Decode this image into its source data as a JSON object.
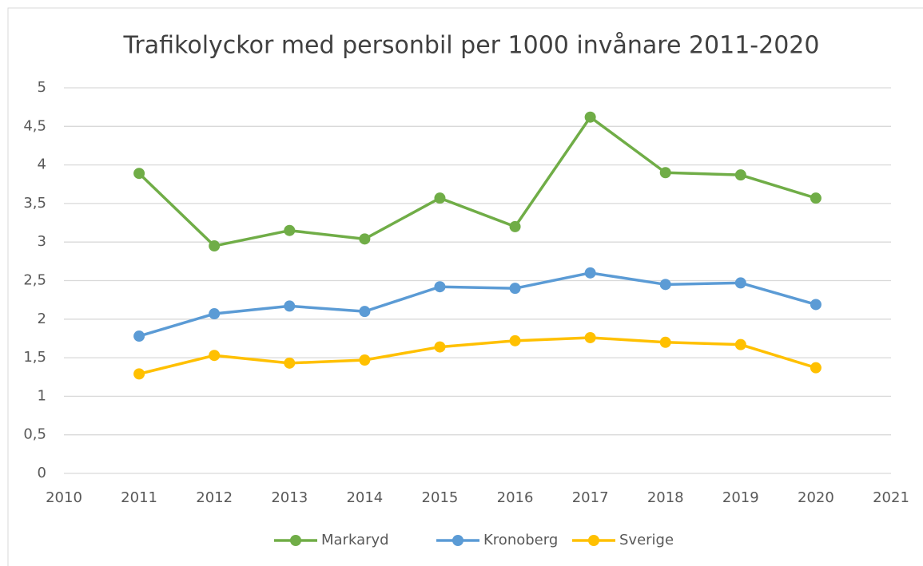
{
  "chart_data": {
    "type": "line",
    "title": "Trafikolyckor med personbil per 1000 invånare 2011-2020",
    "x": [
      2011,
      2012,
      2013,
      2014,
      2015,
      2016,
      2017,
      2018,
      2019,
      2020
    ],
    "series": [
      {
        "name": "Markaryd",
        "color": "#70ad47",
        "values": [
          3.89,
          2.95,
          3.15,
          3.04,
          3.57,
          3.2,
          4.62,
          3.9,
          3.87,
          3.57
        ]
      },
      {
        "name": "Kronoberg",
        "color": "#5b9bd5",
        "values": [
          1.78,
          2.07,
          2.17,
          2.1,
          2.42,
          2.4,
          2.6,
          2.45,
          2.47,
          2.19
        ]
      },
      {
        "name": "Sverige",
        "color": "#ffc000",
        "values": [
          1.29,
          1.53,
          1.43,
          1.47,
          1.64,
          1.72,
          1.76,
          1.7,
          1.67,
          1.37
        ]
      }
    ],
    "xlim": [
      2010,
      2021
    ],
    "xticks": [
      2010,
      2011,
      2012,
      2013,
      2014,
      2015,
      2016,
      2017,
      2018,
      2019,
      2020,
      2021
    ],
    "ylim": [
      0,
      5
    ],
    "yticks": [
      0,
      {
        "value": 0.5,
        "label": "0,5"
      },
      1,
      {
        "value": 1.5,
        "label": "1,5"
      },
      2,
      {
        "value": 2.5,
        "label": "2,5"
      },
      3,
      {
        "value": 3.5,
        "label": "3,5"
      },
      4,
      {
        "value": 4.5,
        "label": "4,5"
      },
      5
    ],
    "grid": true,
    "legend": "bottom"
  }
}
